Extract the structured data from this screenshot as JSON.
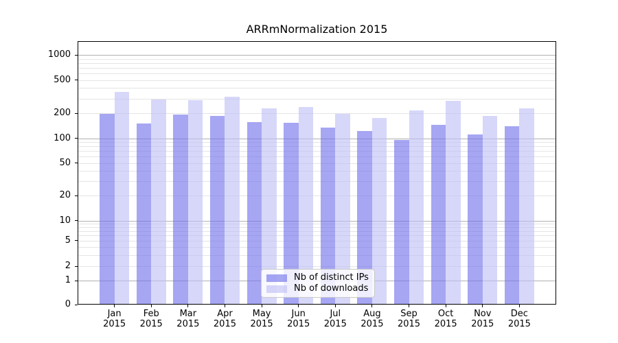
{
  "title": "ARRmNormalization 2015",
  "chart_data": {
    "type": "bar",
    "title": "ARRmNormalization 2015",
    "categories": [
      "Jan",
      "Feb",
      "Mar",
      "Apr",
      "May",
      "Jun",
      "Jul",
      "Aug",
      "Sep",
      "Oct",
      "Nov",
      "Dec"
    ],
    "category_year": "2015",
    "series": [
      {
        "name": "Nb of distinct IPs",
        "color": "#6f6fec",
        "values": [
          196,
          150,
          192,
          184,
          157,
          154,
          135,
          123,
          96,
          145,
          111,
          139
        ]
      },
      {
        "name": "Nb of downloads",
        "color": "#bfbff5",
        "values": [
          362,
          292,
          286,
          313,
          227,
          238,
          198,
          176,
          216,
          284,
          185,
          230
        ]
      }
    ],
    "bar_alpha": 0.62,
    "xlabel": "",
    "ylabel": "",
    "yscale": "symlog",
    "yticks": [
      0,
      1,
      2,
      5,
      10,
      20,
      50,
      100,
      200,
      500,
      1000
    ],
    "ylim": [
      0,
      1459
    ],
    "grid": "both",
    "grid_major_color": "#b0b0b0",
    "grid_minor_color": "#e4e4e4",
    "legend_position": "lower center"
  },
  "legend": {
    "items": [
      {
        "label": "Nb of distinct IPs"
      },
      {
        "label": "Nb of downloads"
      }
    ]
  }
}
